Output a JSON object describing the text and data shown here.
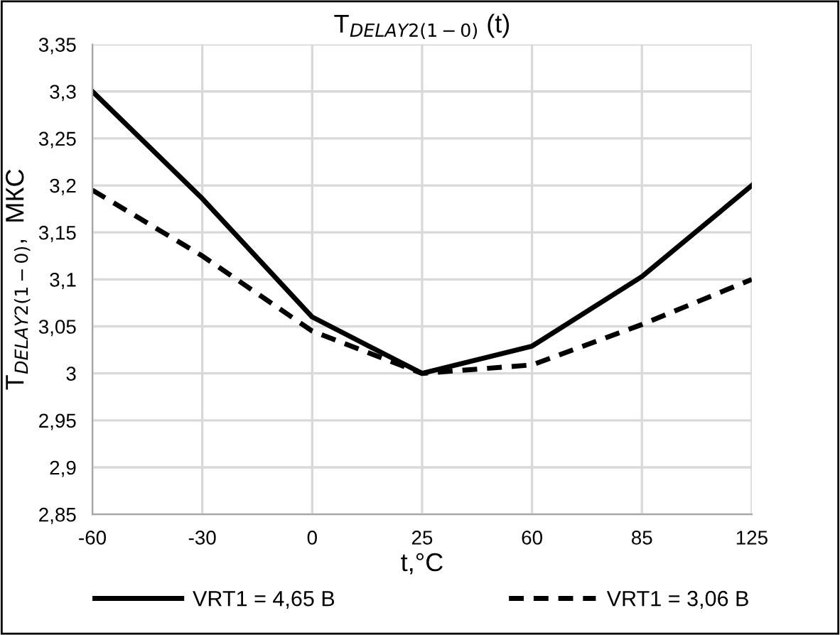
{
  "chart_data": {
    "type": "line",
    "title": "T$_{DELAY2(1−0)}$ (t)",
    "xlabel": "t,°C",
    "ylabel": "T$_{DELAY2(1−0)}$,  МКС",
    "categories": [
      "-60",
      "-30",
      "0",
      "25",
      "60",
      "85",
      "125"
    ],
    "series": [
      {
        "name": "VRT1 = 4,65 В",
        "color": "#000000",
        "line_style": "solid",
        "values": [
          3.3,
          3.186,
          3.06,
          3.0,
          3.029,
          3.103,
          3.2
        ]
      },
      {
        "name": "VRT1 = 3,06 В",
        "color": "#000000",
        "line_style": "dashed",
        "values": [
          3.195,
          3.125,
          3.045,
          3.0,
          3.009,
          3.052,
          3.1
        ]
      }
    ],
    "ylim": [
      2.85,
      3.35
    ],
    "yticks": [
      {
        "value": 2.85,
        "label": "2,85"
      },
      {
        "value": 2.9,
        "label": "2,9"
      },
      {
        "value": 2.95,
        "label": "2,95"
      },
      {
        "value": 3.0,
        "label": "3"
      },
      {
        "value": 3.05,
        "label": "3,05"
      },
      {
        "value": 3.1,
        "label": "3,1"
      },
      {
        "value": 3.15,
        "label": "3,15"
      },
      {
        "value": 3.2,
        "label": "3,2"
      },
      {
        "value": 3.25,
        "label": "3,25"
      },
      {
        "value": 3.3,
        "label": "3,3"
      },
      {
        "value": 3.35,
        "label": "3,35"
      }
    ],
    "grid": true,
    "legend": "bottom",
    "marker": "none"
  }
}
